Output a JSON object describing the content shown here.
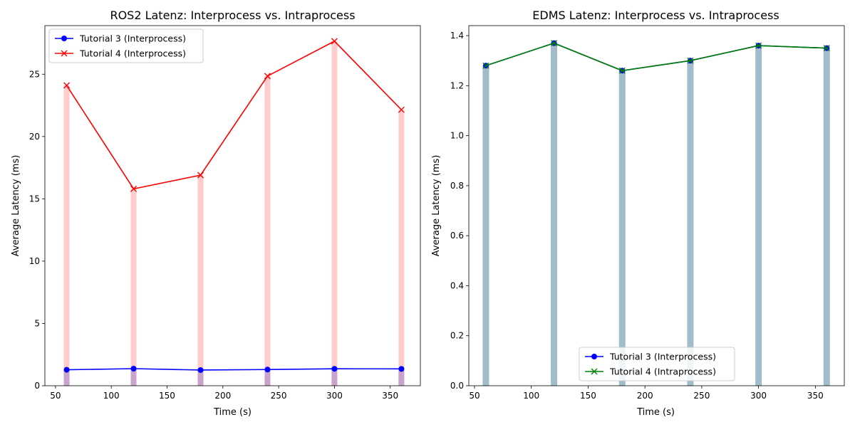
{
  "chart_data": [
    {
      "type": "line",
      "title": "ROS2 Latenz: Interprocess vs. Intraprocess",
      "xlabel": "Time (s)",
      "ylabel": "Average Latency (ms)",
      "xlim": [
        40.5,
        377
      ],
      "ylim": [
        0,
        28.9
      ],
      "xticks": [
        50,
        100,
        150,
        200,
        250,
        300,
        350
      ],
      "yticks": [
        0,
        5,
        10,
        15,
        20,
        25
      ],
      "legend_position": "upper-left",
      "x": [
        60,
        120,
        180,
        240,
        300,
        360
      ],
      "series": [
        {
          "name": "Tutorial 3 (Interprocess)",
          "values": [
            1.28,
            1.37,
            1.26,
            1.3,
            1.36,
            1.35
          ],
          "color": "#0000ff",
          "marker": "circle"
        },
        {
          "name": "Tutorial 4 (Interprocess)",
          "values": [
            24.1,
            15.8,
            16.9,
            24.85,
            27.65,
            22.15
          ],
          "color": "#ff0000",
          "marker": "x"
        }
      ],
      "bar_colors": [
        "#ffcccc",
        "#c9a3cc"
      ]
    },
    {
      "type": "line",
      "title": "EDMS Latenz: Interprocess vs. Intraprocess",
      "xlabel": "Time (s)",
      "ylabel": "Average Latency (ms)",
      "xlim": [
        45,
        375.5
      ],
      "ylim": [
        0,
        1.44
      ],
      "xticks": [
        50,
        100,
        150,
        200,
        250,
        300,
        350
      ],
      "yticks": [
        "0.0",
        "0.2",
        "0.4",
        "0.6",
        "0.8",
        "1.0",
        "1.2",
        "1.4"
      ],
      "legend_position": "lower-center",
      "x": [
        60,
        120,
        180,
        240,
        300,
        360
      ],
      "series": [
        {
          "name": "Tutorial 3 (Interprocess)",
          "values": [
            1.28,
            1.37,
            1.26,
            1.3,
            1.36,
            1.35
          ],
          "color": "#0000ff",
          "marker": "circle"
        },
        {
          "name": "Tutorial 4 (Intraprocess)",
          "values": [
            1.28,
            1.37,
            1.26,
            1.3,
            1.36,
            1.35
          ],
          "color": "#008000",
          "marker": "x"
        }
      ],
      "bar_colors": [
        "#a3bccc"
      ]
    }
  ]
}
